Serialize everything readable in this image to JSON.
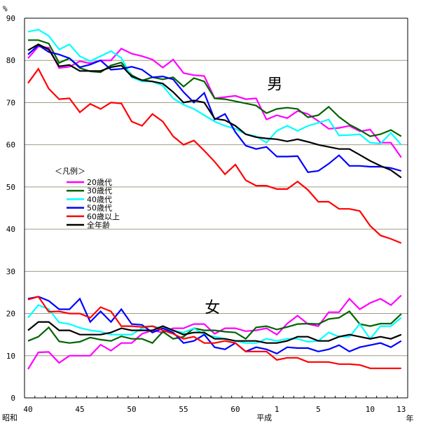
{
  "chart_data": {
    "type": "line",
    "title": "",
    "ylabel": "%",
    "xlabel": "年",
    "ylim": [
      0,
      90
    ],
    "yticks": [
      0,
      10,
      20,
      30,
      40,
      50,
      60,
      70,
      80,
      90
    ],
    "grid": true,
    "x": [
      "S40",
      "S41",
      "S42",
      "S43",
      "S44",
      "S45",
      "S46",
      "S47",
      "S48",
      "S49",
      "S50",
      "S51",
      "S52",
      "S53",
      "S54",
      "S55",
      "S56",
      "S57",
      "S58",
      "S59",
      "S60",
      "S61",
      "S62",
      "S63",
      "H1",
      "H2",
      "H3",
      "H4",
      "H5",
      "H6",
      "H7",
      "H8",
      "H9",
      "H10",
      "H11",
      "H12",
      "H13"
    ],
    "xtick_labels": [
      {
        "index": 0,
        "label": "40"
      },
      {
        "index": 5,
        "label": "45"
      },
      {
        "index": 10,
        "label": "50"
      },
      {
        "index": 15,
        "label": "55"
      },
      {
        "index": 20,
        "label": "60"
      },
      {
        "index": 24,
        "label": "1"
      },
      {
        "index": 28,
        "label": "5"
      },
      {
        "index": 33,
        "label": "10"
      },
      {
        "index": 36,
        "label": "13"
      }
    ],
    "era_labels": [
      {
        "index": 0,
        "label": "昭和"
      },
      {
        "index": 24,
        "label": "平成"
      }
    ],
    "group_labels": [
      {
        "label": "男",
        "index": 24,
        "value": 74.5
      },
      {
        "label": "女",
        "index": 18,
        "value": 21.5
      }
    ],
    "legend": {
      "title": "＜凡例＞",
      "placement": "left-middle"
    },
    "series": [
      {
        "name": "20歳代",
        "color": "#ff00ff",
        "group": "男",
        "values": [
          80.5,
          83.3,
          83.0,
          78.2,
          78.5,
          79.8,
          79.3,
          80.0,
          80.0,
          82.8,
          81.6,
          81.0,
          80.2,
          78.3,
          80.2,
          77.0,
          76.5,
          76.3,
          71.0,
          71.3,
          71.6,
          70.8,
          71.0,
          66.0,
          67.0,
          66.3,
          68.0,
          67.3,
          65.6,
          63.8,
          64.0,
          64.5,
          63.2,
          63.6,
          60.5,
          60.5,
          57.0
        ]
      },
      {
        "name": "30歳代",
        "color": "#006400",
        "group": "男",
        "values": [
          84.8,
          84.8,
          84.0,
          79.4,
          80.5,
          78.2,
          77.4,
          77.2,
          78.8,
          79.5,
          76.5,
          75.2,
          76.0,
          75.5,
          76.0,
          73.8,
          75.8,
          75.0,
          71.0,
          70.8,
          70.3,
          69.8,
          69.3,
          67.5,
          68.5,
          68.8,
          68.5,
          66.5,
          67.0,
          69.0,
          66.6,
          64.8,
          63.5,
          62.0,
          62.5,
          63.5,
          62.0
        ]
      },
      {
        "name": "40歳代",
        "color": "#00ffff",
        "group": "男",
        "values": [
          86.8,
          87.3,
          85.8,
          82.6,
          83.8,
          81.0,
          79.8,
          81.0,
          82.2,
          80.6,
          76.0,
          75.0,
          75.0,
          74.0,
          71.0,
          69.5,
          68.5,
          67.0,
          65.5,
          64.5,
          63.8,
          62.5,
          62.0,
          60.5,
          63.3,
          64.5,
          63.3,
          64.5,
          65.2,
          66.0,
          62.2,
          62.3,
          62.5,
          60.5,
          60.3,
          62.8,
          60.0
        ]
      },
      {
        "name": "50歳代",
        "color": "#0000ff",
        "group": "男",
        "values": [
          81.4,
          83.6,
          82.0,
          81.4,
          80.5,
          78.4,
          79.0,
          80.0,
          77.8,
          78.0,
          78.5,
          77.8,
          76.0,
          76.2,
          75.5,
          72.5,
          70.0,
          72.3,
          66.0,
          67.3,
          63.0,
          59.8,
          59.0,
          59.5,
          57.2,
          57.2,
          57.3,
          53.5,
          53.8,
          55.5,
          57.5,
          55.0,
          55.0,
          54.8,
          54.8,
          54.5,
          53.8
        ]
      },
      {
        "name": "60歳以上",
        "color": "#ff0000",
        "group": "男",
        "values": [
          74.6,
          78.0,
          73.3,
          70.8,
          71.0,
          67.7,
          69.7,
          68.5,
          70.0,
          69.8,
          65.5,
          64.5,
          67.3,
          65.5,
          62.0,
          60.0,
          61.0,
          58.6,
          56.0,
          53.0,
          55.3,
          51.6,
          50.3,
          50.3,
          49.5,
          49.5,
          51.3,
          49.3,
          46.5,
          46.5,
          44.8,
          44.8,
          44.3,
          40.8,
          38.5,
          37.7,
          36.7
        ]
      },
      {
        "name": "全年齢",
        "color": "#000000",
        "group": "男",
        "values": [
          82.4,
          83.8,
          82.6,
          78.6,
          78.9,
          77.5,
          77.5,
          77.5,
          78.4,
          78.8,
          76.2,
          75.3,
          75.0,
          74.5,
          72.5,
          70.0,
          70.5,
          70.0,
          66.2,
          65.8,
          64.5,
          62.5,
          61.8,
          61.5,
          61.3,
          60.8,
          61.3,
          60.7,
          60.0,
          59.5,
          59.0,
          59.0,
          57.6,
          56.2,
          55.0,
          54.0,
          52.2
        ]
      },
      {
        "name": "20歳代",
        "color": "#ff00ff",
        "group": "女",
        "values": [
          6.8,
          10.8,
          10.9,
          8.3,
          10.0,
          10.0,
          10.0,
          12.6,
          11.2,
          13.0,
          13.0,
          15.2,
          16.0,
          15.5,
          16.5,
          16.5,
          17.5,
          17.5,
          15.2,
          16.5,
          16.5,
          15.8,
          16.0,
          16.5,
          15.0,
          17.6,
          19.5,
          17.5,
          17.0,
          20.3,
          20.3,
          23.5,
          21.0,
          22.5,
          23.5,
          22.0,
          24.3
        ]
      },
      {
        "name": "30歳代",
        "color": "#006400",
        "group": "女",
        "values": [
          13.5,
          14.5,
          16.7,
          13.4,
          13.0,
          13.3,
          14.3,
          13.8,
          13.5,
          14.6,
          14.0,
          14.0,
          13.0,
          15.7,
          14.0,
          14.5,
          16.5,
          16.0,
          16.0,
          15.7,
          15.5,
          14.0,
          16.7,
          17.0,
          16.2,
          16.8,
          17.5,
          17.6,
          17.5,
          18.7,
          19.0,
          20.5,
          17.5,
          17.0,
          17.6,
          17.6,
          19.9
        ]
      },
      {
        "name": "40歳代",
        "color": "#00ffff",
        "group": "女",
        "values": [
          19.0,
          22.0,
          21.0,
          17.9,
          17.5,
          16.6,
          16.0,
          15.7,
          15.0,
          15.0,
          15.0,
          16.5,
          17.0,
          16.5,
          16.0,
          15.5,
          16.5,
          15.0,
          14.5,
          14.0,
          13.5,
          13.0,
          13.0,
          14.0,
          13.5,
          14.0,
          14.0,
          13.3,
          13.5,
          15.5,
          14.5,
          14.5,
          17.5,
          14.0,
          17.0,
          17.0,
          19.0
        ]
      },
      {
        "name": "50歳代",
        "color": "#0000ff",
        "group": "女",
        "values": [
          23.5,
          24.0,
          23.0,
          21.0,
          21.0,
          23.5,
          18.0,
          20.5,
          18.0,
          21.0,
          17.5,
          17.3,
          15.5,
          16.5,
          15.5,
          13.0,
          13.5,
          15.0,
          12.0,
          11.5,
          13.0,
          11.0,
          12.0,
          11.5,
          10.5,
          12.0,
          11.8,
          11.8,
          11.0,
          11.5,
          12.5,
          11.0,
          12.0,
          12.5,
          13.0,
          12.0,
          13.5
        ]
      },
      {
        "name": "60歳以上",
        "color": "#ff0000",
        "group": "女",
        "values": [
          23.3,
          24.0,
          20.4,
          20.5,
          20.0,
          20.0,
          19.0,
          21.5,
          20.5,
          17.0,
          17.0,
          16.8,
          17.0,
          16.0,
          15.2,
          14.0,
          14.5,
          13.0,
          13.0,
          13.5,
          13.0,
          11.0,
          11.0,
          11.0,
          9.0,
          9.5,
          9.5,
          8.5,
          8.5,
          8.5,
          8.0,
          8.0,
          7.8,
          7.0,
          7.0,
          7.0,
          7.0
        ]
      },
      {
        "name": "全年齢",
        "color": "#000000",
        "group": "女",
        "values": [
          16.0,
          18.0,
          18.0,
          16.0,
          16.0,
          15.0,
          15.0,
          15.0,
          15.5,
          16.5,
          16.0,
          16.0,
          16.0,
          17.0,
          16.0,
          15.0,
          15.5,
          15.5,
          14.0,
          14.0,
          13.5,
          13.5,
          13.5,
          13.0,
          13.0,
          13.5,
          14.5,
          14.5,
          13.5,
          13.5,
          14.5,
          15.0,
          14.5,
          14.0,
          14.5,
          14.0,
          15.0
        ]
      }
    ]
  }
}
